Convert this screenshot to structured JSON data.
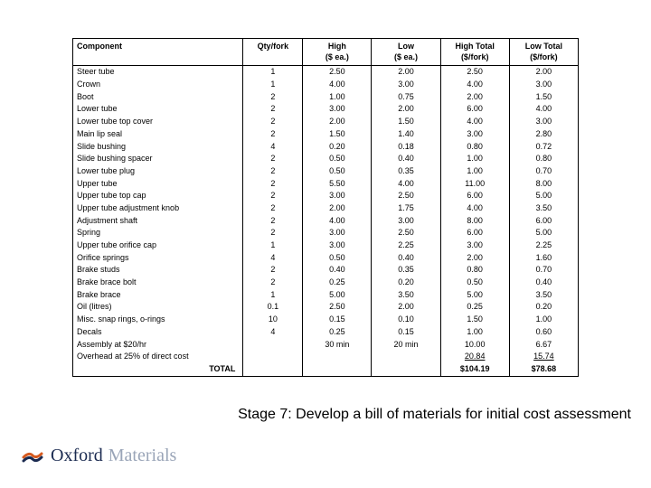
{
  "table": {
    "headers": {
      "component": "Component",
      "qty": "Qty/fork",
      "high_ea": "High\n($ ea.)",
      "low_ea": "Low\n($ ea.)",
      "high_total": "High Total\n($/fork)",
      "low_total": "Low Total\n($/fork)"
    },
    "rows": [
      {
        "component": "Steer tube",
        "qty": "1",
        "high_ea": "2.50",
        "low_ea": "2.00",
        "high_total": "2.50",
        "low_total": "2.00"
      },
      {
        "component": "Crown",
        "qty": "1",
        "high_ea": "4.00",
        "low_ea": "3.00",
        "high_total": "4.00",
        "low_total": "3.00"
      },
      {
        "component": "Boot",
        "qty": "2",
        "high_ea": "1.00",
        "low_ea": "0.75",
        "high_total": "2.00",
        "low_total": "1.50"
      },
      {
        "component": "Lower tube",
        "qty": "2",
        "high_ea": "3.00",
        "low_ea": "2.00",
        "high_total": "6.00",
        "low_total": "4.00"
      },
      {
        "component": "Lower tube top cover",
        "qty": "2",
        "high_ea": "2.00",
        "low_ea": "1.50",
        "high_total": "4.00",
        "low_total": "3.00"
      },
      {
        "component": "Main lip seal",
        "qty": "2",
        "high_ea": "1.50",
        "low_ea": "1.40",
        "high_total": "3.00",
        "low_total": "2.80"
      },
      {
        "component": "Slide bushing",
        "qty": "4",
        "high_ea": "0.20",
        "low_ea": "0.18",
        "high_total": "0.80",
        "low_total": "0.72"
      },
      {
        "component": "Slide bushing spacer",
        "qty": "2",
        "high_ea": "0.50",
        "low_ea": "0.40",
        "high_total": "1.00",
        "low_total": "0.80"
      },
      {
        "component": "Lower tube plug",
        "qty": "2",
        "high_ea": "0.50",
        "low_ea": "0.35",
        "high_total": "1.00",
        "low_total": "0.70"
      },
      {
        "component": "Upper tube",
        "qty": "2",
        "high_ea": "5.50",
        "low_ea": "4.00",
        "high_total": "11.00",
        "low_total": "8.00"
      },
      {
        "component": "Upper tube top cap",
        "qty": "2",
        "high_ea": "3.00",
        "low_ea": "2.50",
        "high_total": "6.00",
        "low_total": "5.00"
      },
      {
        "component": "Upper tube adjustment knob",
        "qty": "2",
        "high_ea": "2.00",
        "low_ea": "1.75",
        "high_total": "4.00",
        "low_total": "3.50"
      },
      {
        "component": "Adjustment shaft",
        "qty": "2",
        "high_ea": "4.00",
        "low_ea": "3.00",
        "high_total": "8.00",
        "low_total": "6.00"
      },
      {
        "component": "Spring",
        "qty": "2",
        "high_ea": "3.00",
        "low_ea": "2.50",
        "high_total": "6.00",
        "low_total": "5.00"
      },
      {
        "component": "Upper tube orifice cap",
        "qty": "1",
        "high_ea": "3.00",
        "low_ea": "2.25",
        "high_total": "3.00",
        "low_total": "2.25"
      },
      {
        "component": "Orifice springs",
        "qty": "4",
        "high_ea": "0.50",
        "low_ea": "0.40",
        "high_total": "2.00",
        "low_total": "1.60"
      },
      {
        "component": "Brake studs",
        "qty": "2",
        "high_ea": "0.40",
        "low_ea": "0.35",
        "high_total": "0.80",
        "low_total": "0.70"
      },
      {
        "component": "Brake brace bolt",
        "qty": "2",
        "high_ea": "0.25",
        "low_ea": "0.20",
        "high_total": "0.50",
        "low_total": "0.40"
      },
      {
        "component": "Brake brace",
        "qty": "1",
        "high_ea": "5.00",
        "low_ea": "3.50",
        "high_total": "5.00",
        "low_total": "3.50"
      },
      {
        "component": "Oil (litres)",
        "qty": "0.1",
        "high_ea": "2.50",
        "low_ea": "2.00",
        "high_total": "0.25",
        "low_total": "0.20"
      },
      {
        "component": "Misc. snap rings, o-rings",
        "qty": "10",
        "high_ea": "0.15",
        "low_ea": "0.10",
        "high_total": "1.50",
        "low_total": "1.00"
      },
      {
        "component": "Decals",
        "qty": "4",
        "high_ea": "0.25",
        "low_ea": "0.15",
        "high_total": "1.00",
        "low_total": "0.60"
      },
      {
        "component": "Assembly at $20/hr",
        "qty": "",
        "high_ea": "30 min",
        "low_ea": "20 min",
        "high_total": "10.00",
        "low_total": "6.67"
      },
      {
        "component": "Overhead at 25% of direct cost",
        "qty": "",
        "high_ea": "",
        "low_ea": "",
        "high_total": "20.84",
        "low_total": "15.74",
        "underline": true
      }
    ],
    "total": {
      "label": "TOTAL",
      "high_total": "$104.19",
      "low_total": "$78.68"
    }
  },
  "caption": "Stage 7: Develop a bill of materials for initial cost assessment",
  "logo": {
    "oxford": "Oxford",
    "materials": "Materials"
  },
  "colors": {
    "border": "#000000",
    "text": "#000000",
    "logo_dark": "#1a2a50",
    "logo_light": "#9aa5b8",
    "logo_orange": "#d65a1f"
  }
}
